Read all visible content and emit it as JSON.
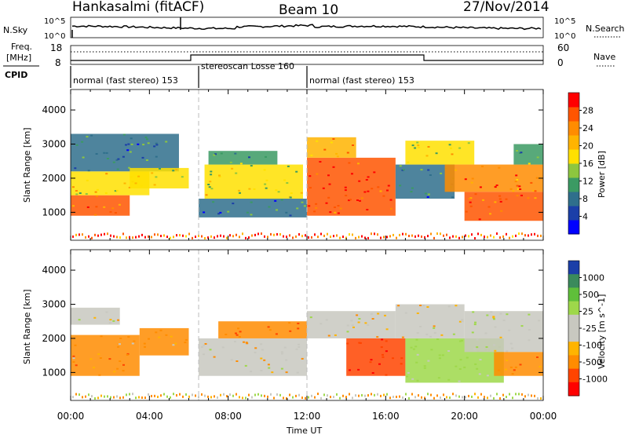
{
  "header": {
    "station": "Hankasalmi (fitACF)",
    "beam": "Beam 10",
    "date": "27/Nov/2014"
  },
  "aux_panels": {
    "nsky": {
      "label": "N.Sky",
      "right_label": "N.Search",
      "left_ticks": [
        "10^5",
        "10^0"
      ],
      "right_ticks": [
        "10^5",
        "10^0"
      ]
    },
    "freq": {
      "label_line1": "Freq.",
      "label_line2": "[MHz]",
      "right_label": "Nave",
      "left_ticks": [
        "18",
        "8"
      ],
      "right_ticks": [
        "60",
        "0"
      ]
    },
    "cpid": {
      "label": "CPID",
      "segments": [
        {
          "name": "normal (fast stereo) 153",
          "start": 0.0,
          "end": 6.5
        },
        {
          "name": "stereoscan Losse 160",
          "start": 6.5,
          "end": 12.0
        },
        {
          "name": "normal (fast stereo) 153",
          "start": 12.0,
          "end": 24.0
        }
      ]
    }
  },
  "chart_data": [
    {
      "type": "heatmap",
      "title": "",
      "xlabel": "Time UT",
      "ylabel": "Slant Range [km]",
      "xlim": [
        0,
        24
      ],
      "ylim": [
        180,
        4600
      ],
      "x_ticks": [
        "00:00",
        "04:00",
        "08:00",
        "12:00",
        "16:00",
        "20:00",
        "00:00"
      ],
      "y_ticks": [
        1000,
        2000,
        3000,
        4000
      ],
      "colorbar": {
        "label": "Power [dB]",
        "ticks": [
          4,
          8,
          12,
          16,
          20,
          24,
          28
        ],
        "range": [
          0,
          32
        ],
        "colors": [
          "#0000ff",
          "#1b3fa8",
          "#2f6f8c",
          "#3b9a63",
          "#8dc63f",
          "#ffe000",
          "#ffb400",
          "#ff8c00",
          "#ff5500",
          "#ff0000"
        ]
      },
      "regions": [
        {
          "t0": 0.0,
          "t1": 3.0,
          "r0": 900,
          "r1": 1500,
          "value": 28
        },
        {
          "t0": 0.0,
          "t1": 4.0,
          "r0": 1500,
          "r1": 2200,
          "value": 18
        },
        {
          "t0": 0.0,
          "t1": 5.5,
          "r0": 2200,
          "r1": 3300,
          "value": 9
        },
        {
          "t0": 3.0,
          "t1": 6.0,
          "r0": 1700,
          "r1": 2300,
          "value": 17
        },
        {
          "t0": 6.5,
          "t1": 12.0,
          "r0": 850,
          "r1": 1400,
          "value": 8
        },
        {
          "t0": 6.8,
          "t1": 11.8,
          "r0": 1400,
          "r1": 2400,
          "value": 17
        },
        {
          "t0": 7.0,
          "t1": 10.5,
          "r0": 2400,
          "r1": 2800,
          "value": 11
        },
        {
          "t0": 12.0,
          "t1": 16.5,
          "r0": 900,
          "r1": 2600,
          "value": 28
        },
        {
          "t0": 12.0,
          "t1": 14.5,
          "r0": 2600,
          "r1": 3200,
          "value": 22
        },
        {
          "t0": 16.5,
          "t1": 19.5,
          "r0": 1400,
          "r1": 2400,
          "value": 9
        },
        {
          "t0": 17.0,
          "t1": 20.5,
          "r0": 2400,
          "r1": 3100,
          "value": 18
        },
        {
          "t0": 20.0,
          "t1": 24.0,
          "r0": 750,
          "r1": 1600,
          "value": 27
        },
        {
          "t0": 19.0,
          "t1": 24.0,
          "r0": 1600,
          "r1": 2400,
          "value": 24
        },
        {
          "t0": 22.5,
          "t1": 24.0,
          "r0": 2400,
          "r1": 3000,
          "value": 10
        }
      ]
    },
    {
      "type": "heatmap",
      "title": "",
      "xlabel": "Time UT",
      "ylabel": "Slant Range [km]",
      "xlim": [
        0,
        24
      ],
      "ylim": [
        180,
        4600
      ],
      "x_ticks": [
        "00:00",
        "04:00",
        "08:00",
        "12:00",
        "16:00",
        "20:00",
        "00:00"
      ],
      "y_ticks": [
        1000,
        2000,
        3000,
        4000
      ],
      "colorbar": {
        "label": "Velocity [m s^-1]",
        "ticks": [
          "1000",
          "500",
          "25",
          "-25",
          "-100",
          "-500",
          "-1000"
        ],
        "colors": [
          "#1c3fa8",
          "#3a8a5c",
          "#5fbf3a",
          "#9ed84a",
          "#c8c8c0",
          "#c8c8c0",
          "#ffb400",
          "#ff8c00",
          "#ff4400",
          "#ff0000"
        ]
      },
      "regions": [
        {
          "t0": 0.0,
          "t1": 2.5,
          "r0": 2400,
          "r1": 2900,
          "value": 0
        },
        {
          "t0": 0.0,
          "t1": 3.5,
          "r0": 900,
          "r1": 2100,
          "value": -150
        },
        {
          "t0": 3.5,
          "t1": 6.0,
          "r0": 1500,
          "r1": 2300,
          "value": -120
        },
        {
          "t0": 6.5,
          "t1": 12.0,
          "r0": 900,
          "r1": 2000,
          "value": 0
        },
        {
          "t0": 7.5,
          "t1": 12.0,
          "r0": 2000,
          "r1": 2500,
          "value": -300
        },
        {
          "t0": 12.0,
          "t1": 16.5,
          "r0": 2000,
          "r1": 2800,
          "value": 0
        },
        {
          "t0": 14.0,
          "t1": 17.0,
          "r0": 900,
          "r1": 2000,
          "value": -500
        },
        {
          "t0": 17.0,
          "t1": 22.0,
          "r0": 700,
          "r1": 2000,
          "value": 200
        },
        {
          "t0": 16.5,
          "t1": 20.0,
          "r0": 2000,
          "r1": 3000,
          "value": 0
        },
        {
          "t0": 20.0,
          "t1": 24.0,
          "r0": 1600,
          "r1": 2800,
          "value": 80
        },
        {
          "t0": 21.5,
          "t1": 24.0,
          "r0": 900,
          "r1": 1600,
          "value": -200
        }
      ]
    }
  ]
}
